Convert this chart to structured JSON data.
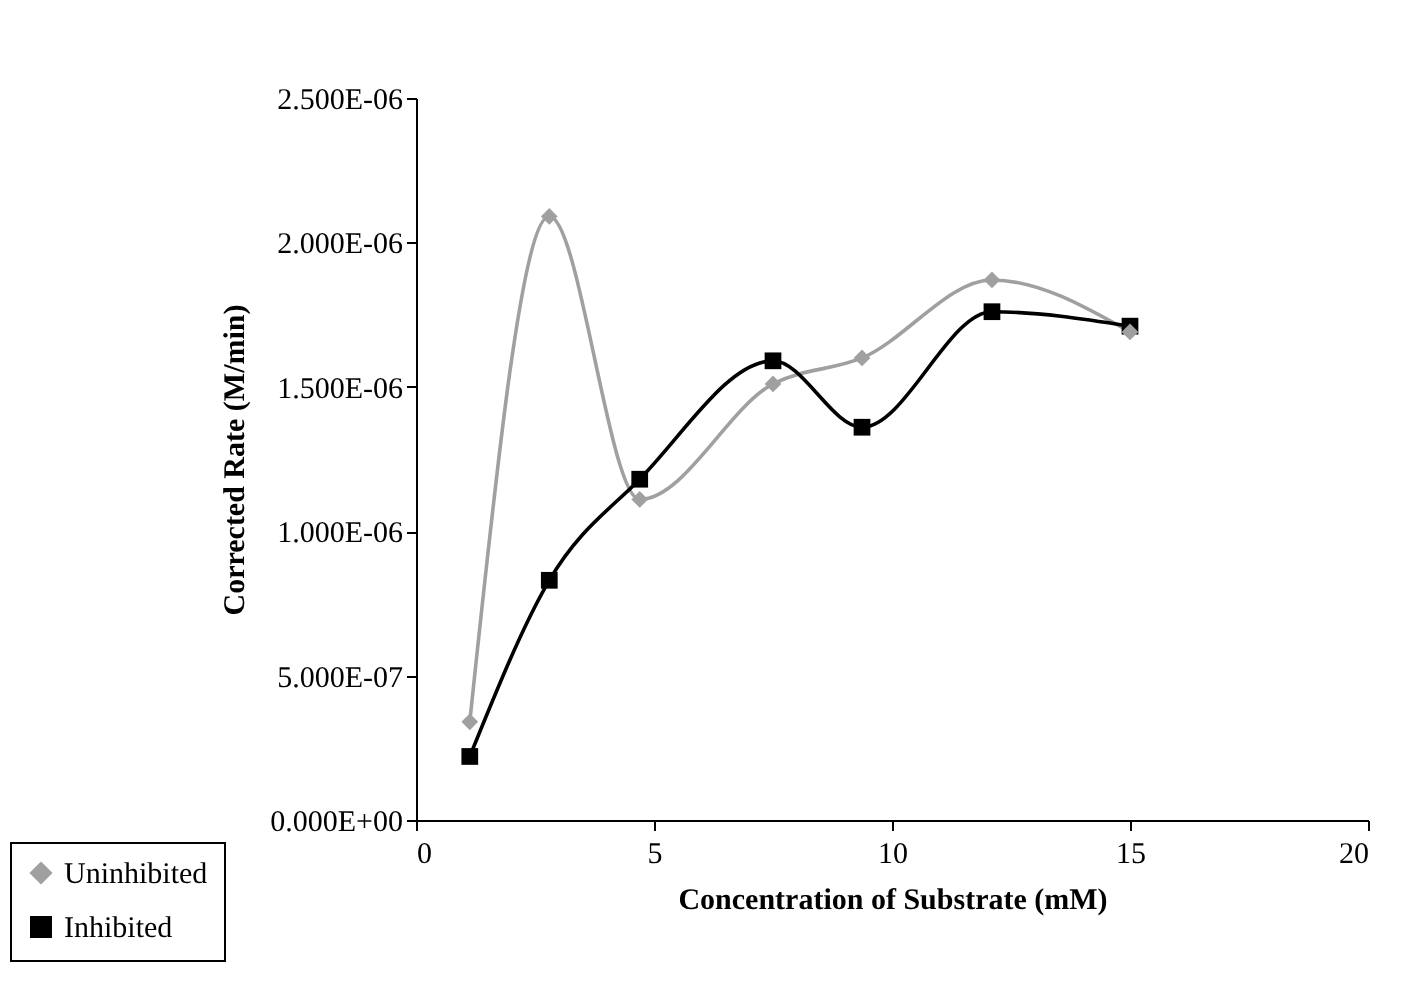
{
  "chart_data": {
    "type": "line",
    "xlabel": "Concentration of Substrate (mM)",
    "ylabel": "Corrected Rate (M/min)",
    "x": [
      1.13,
      2.8,
      4.7,
      7.5,
      9.37,
      12.1,
      15
    ],
    "series": [
      {
        "name": "Uninhibited",
        "color": "#a0a0a0",
        "marker": "diamond",
        "values": [
          3.4e-07,
          2.09e-06,
          1.11e-06,
          1.51e-06,
          1.6e-06,
          1.87e-06,
          1.69e-06
        ]
      },
      {
        "name": "Inhibited",
        "color": "#000000",
        "marker": "square",
        "values": [
          2.2e-07,
          8.3e-07,
          1.18e-06,
          1.59e-06,
          1.36e-06,
          1.76e-06,
          1.71e-06
        ]
      }
    ],
    "xlim": [
      0,
      20
    ],
    "xticks": [
      0,
      5,
      10,
      15,
      20
    ],
    "ylim": [
      0,
      2.5e-06
    ],
    "yticks": [
      {
        "value": 0,
        "label": "0.000E+00"
      },
      {
        "value": 5e-07,
        "label": "5.000E-07"
      },
      {
        "value": 1e-06,
        "label": "1.000E-06"
      },
      {
        "value": 1.5e-06,
        "label": "1.500E-06"
      },
      {
        "value": 2e-06,
        "label": "2.000E-06"
      },
      {
        "value": 2.5e-06,
        "label": "2.500E-06"
      }
    ],
    "grid": false,
    "legend": "bottom left",
    "line_style": "solid"
  }
}
